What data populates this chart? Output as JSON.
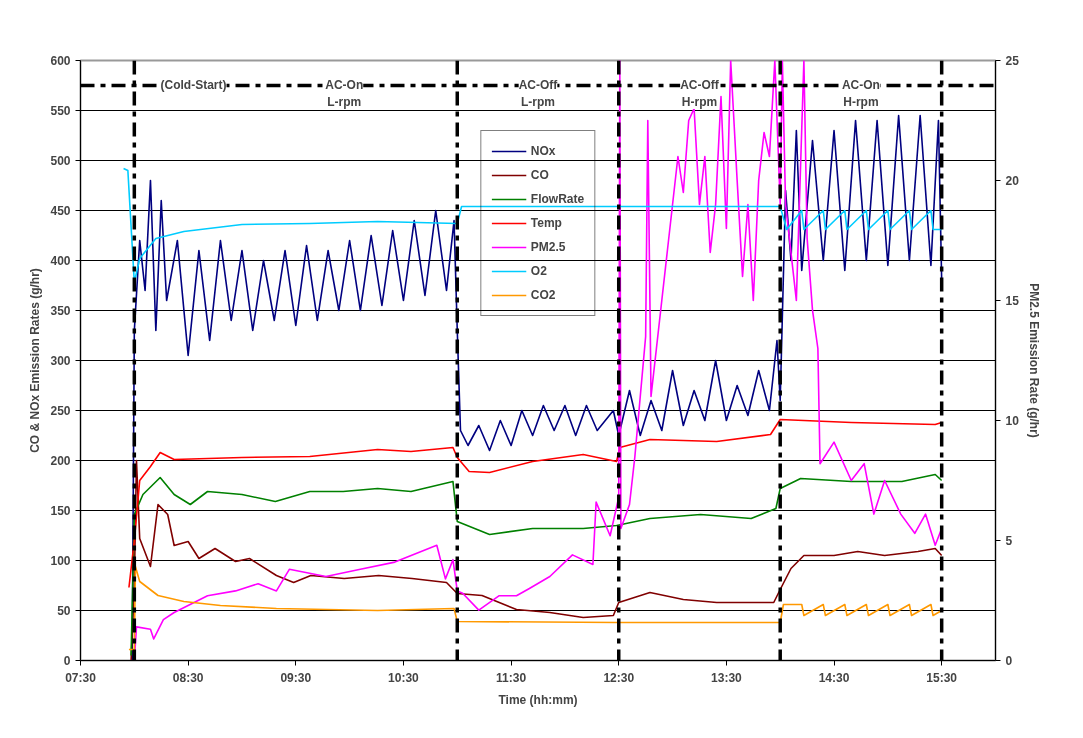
{
  "chart_data": {
    "type": "line",
    "xlabel": "Time (hh:mm)",
    "ylabel": "CO & NOx Emission Rates (g/hr)",
    "y2label": "PM2.5 Emission Rate (g/hr)",
    "xlim": [
      7.5,
      16.0
    ],
    "xticks": [
      {
        "value": 7.5,
        "label": "07:30"
      },
      {
        "value": 8.5,
        "label": "08:30"
      },
      {
        "value": 9.5,
        "label": "09:30"
      },
      {
        "value": 10.5,
        "label": "10:30"
      },
      {
        "value": 11.5,
        "label": "11:30"
      },
      {
        "value": 12.5,
        "label": "12:30"
      },
      {
        "value": 13.5,
        "label": "13:30"
      },
      {
        "value": 14.5,
        "label": "14:30"
      },
      {
        "value": 15.5,
        "label": "15:30"
      }
    ],
    "ylim": [
      0,
      600
    ],
    "yticks": [
      0,
      50,
      100,
      150,
      200,
      250,
      300,
      350,
      400,
      450,
      500,
      550,
      600
    ],
    "y2lim": [
      0,
      25
    ],
    "y2ticks": [
      0,
      5,
      10,
      15,
      20,
      25
    ],
    "grid": "y",
    "legend": "top center",
    "line_style": "solid",
    "marker": "none",
    "series": [
      {
        "name": "NOx",
        "color": "#000080",
        "x": [
          7.98,
          8.0,
          8.05,
          8.1,
          8.15,
          8.2,
          8.25,
          8.3,
          8.4,
          8.5,
          8.6,
          8.7,
          8.8,
          8.9,
          9.0,
          9.1,
          9.2,
          9.3,
          9.4,
          9.5,
          9.6,
          9.7,
          9.8,
          9.9,
          10.0,
          10.1,
          10.2,
          10.3,
          10.4,
          10.5,
          10.6,
          10.7,
          10.8,
          10.9,
          10.97,
          11.0,
          11.03,
          11.1,
          11.2,
          11.3,
          11.4,
          11.5,
          11.6,
          11.7,
          11.8,
          11.9,
          12.0,
          12.1,
          12.2,
          12.3,
          12.45,
          12.5,
          12.6,
          12.7,
          12.8,
          12.9,
          13.0,
          13.1,
          13.2,
          13.3,
          13.4,
          13.5,
          13.6,
          13.7,
          13.8,
          13.9,
          13.97,
          14.0,
          14.05,
          14.1,
          14.15,
          14.2,
          14.3,
          14.4,
          14.5,
          14.6,
          14.7,
          14.8,
          14.9,
          15.0,
          15.1,
          15.2,
          15.3,
          15.4,
          15.47,
          15.5
        ],
        "values": [
          0,
          330,
          420,
          370,
          480,
          330,
          460,
          360,
          420,
          305,
          410,
          320,
          420,
          340,
          410,
          330,
          400,
          340,
          410,
          335,
          415,
          340,
          410,
          350,
          420,
          350,
          425,
          355,
          430,
          360,
          440,
          365,
          450,
          370,
          440,
          330,
          230,
          215,
          235,
          210,
          240,
          215,
          250,
          225,
          255,
          230,
          255,
          225,
          255,
          230,
          250,
          225,
          270,
          225,
          260,
          230,
          290,
          235,
          270,
          240,
          300,
          240,
          275,
          245,
          290,
          250,
          320,
          260,
          470,
          400,
          530,
          390,
          520,
          400,
          530,
          390,
          540,
          400,
          540,
          395,
          545,
          400,
          545,
          395,
          540,
          380
        ]
      },
      {
        "name": "CO",
        "color": "#800000",
        "x": [
          7.97,
          8.0,
          8.02,
          8.05,
          8.15,
          8.22,
          8.31,
          8.37,
          8.5,
          8.6,
          8.75,
          8.94,
          9.07,
          9.32,
          9.48,
          9.64,
          9.95,
          10.27,
          10.58,
          10.9,
          11.0,
          11.23,
          11.55,
          11.86,
          12.17,
          12.45,
          12.5,
          12.79,
          13.1,
          13.41,
          13.73,
          13.94,
          14.0,
          14.1,
          14.22,
          14.5,
          14.72,
          14.97,
          15.28,
          15.44,
          15.5
        ],
        "values": [
          0,
          75,
          200,
          122,
          94,
          156,
          146,
          115,
          119,
          102,
          112,
          99,
          102,
          85,
          78,
          85,
          82,
          85,
          82,
          78,
          67,
          65,
          51,
          48,
          43,
          45,
          58,
          68,
          61,
          58,
          58,
          58,
          71,
          92,
          105,
          105,
          109,
          105,
          109,
          112,
          105
        ]
      },
      {
        "name": "FlowRate",
        "color": "#008000",
        "x": [
          7.97,
          8.0,
          8.08,
          8.24,
          8.37,
          8.52,
          8.68,
          9.0,
          9.31,
          9.63,
          9.94,
          10.26,
          10.57,
          10.96,
          11.0,
          11.3,
          11.7,
          12.17,
          12.48,
          12.79,
          13.26,
          13.73,
          13.96,
          14.0,
          14.19,
          14.66,
          15.13,
          15.44,
          15.5
        ],
        "values": [
          5,
          146,
          166,
          183,
          166,
          156,
          169,
          166,
          159,
          169,
          169,
          172,
          169,
          179,
          139,
          126,
          132,
          132,
          135,
          142,
          146,
          142,
          152,
          172,
          182,
          179,
          179,
          186,
          180
        ]
      },
      {
        "name": "Temp",
        "color": "#ff0000",
        "x": [
          7.95,
          8.0,
          8.05,
          8.15,
          8.24,
          8.37,
          9.0,
          9.63,
          10.26,
          10.57,
          10.96,
          11.0,
          11.11,
          11.3,
          11.7,
          12.17,
          12.48,
          12.51,
          12.79,
          13.41,
          13.91,
          14.0,
          14.66,
          15.44,
          15.5
        ],
        "values": [
          73,
          120,
          180,
          194,
          208,
          201,
          203,
          204,
          211,
          209,
          213,
          203,
          189,
          188,
          199,
          206,
          199,
          213,
          221,
          219,
          226,
          241,
          238,
          236,
          238
        ]
      },
      {
        "name": "PM2.5",
        "color": "#ff00ff",
        "axis": "y2",
        "x": [
          8.0,
          8.02,
          8.15,
          8.18,
          8.27,
          8.37,
          8.68,
          8.94,
          9.15,
          9.32,
          9.44,
          9.78,
          10.1,
          10.42,
          10.81,
          10.89,
          10.96,
          11.0,
          11.05,
          11.2,
          11.39,
          11.55,
          11.67,
          11.86,
          12.07,
          12.26,
          12.29,
          12.42,
          12.5,
          12.51,
          12.52,
          12.6,
          12.65,
          12.7,
          12.75,
          12.77,
          12.8,
          12.85,
          12.9,
          12.95,
          13.0,
          13.05,
          13.1,
          13.15,
          13.2,
          13.25,
          13.3,
          13.35,
          13.4,
          13.45,
          13.5,
          13.54,
          13.6,
          13.65,
          13.7,
          13.75,
          13.8,
          13.85,
          13.9,
          13.95,
          14.0,
          14.02,
          14.05,
          14.15,
          14.22,
          14.25,
          14.3,
          14.35,
          14.37,
          14.5,
          14.66,
          14.78,
          14.87,
          14.97,
          15.12,
          15.25,
          15.35,
          15.44,
          15.5
        ],
        "values": [
          0,
          1.4,
          1.3,
          0.9,
          1.7,
          2.0,
          2.7,
          2.9,
          3.2,
          2.9,
          3.8,
          3.5,
          3.8,
          4.1,
          4.8,
          3.4,
          4.2,
          2.9,
          2.8,
          2.1,
          2.7,
          2.7,
          3.0,
          3.5,
          4.4,
          4.0,
          6.6,
          5.2,
          6.8,
          25,
          5.5,
          6.5,
          8.5,
          11,
          13.5,
          22.5,
          11,
          13,
          15,
          17,
          19,
          21,
          19.5,
          22.5,
          23,
          19,
          21,
          17,
          19,
          23.5,
          18,
          25,
          20,
          16,
          19,
          15,
          20,
          22,
          21,
          25,
          19,
          25,
          19,
          15,
          25,
          17.6,
          14.6,
          13,
          8.2,
          9.1,
          7.5,
          8.2,
          6.1,
          7.5,
          6.1,
          5.3,
          6.1,
          4.8,
          5.5
        ]
      },
      {
        "name": "O2",
        "color": "#00ccff",
        "x": [
          7.9,
          7.94,
          8.0,
          8.05,
          8.2,
          8.46,
          9.0,
          9.63,
          10.26,
          11.0,
          11.04,
          12.49,
          14.0,
          14.06,
          14.2,
          14.22,
          14.4,
          14.42,
          14.6,
          14.62,
          14.8,
          14.82,
          15.0,
          15.02,
          15.2,
          15.22,
          15.4,
          15.42,
          15.5
        ],
        "values": [
          492,
          490,
          378,
          402,
          422,
          429,
          436,
          437,
          439,
          437,
          454,
          454,
          454,
          431,
          450,
          431,
          450,
          431,
          450,
          431,
          450,
          431,
          450,
          431,
          450,
          431,
          450,
          431,
          431
        ]
      },
      {
        "name": "CO2",
        "color": "#ff9900",
        "x": [
          7.95,
          8.0,
          8.01,
          8.05,
          8.22,
          8.46,
          8.8,
          9.32,
          10.26,
          10.97,
          11.0,
          12.48,
          14.0,
          14.03,
          14.2,
          14.22,
          14.4,
          14.42,
          14.6,
          14.62,
          14.8,
          14.82,
          15.0,
          15.02,
          15.2,
          15.22,
          15.4,
          15.42,
          15.5
        ],
        "values": [
          11,
          11,
          94,
          79,
          65,
          59,
          55,
          52,
          50,
          52,
          39,
          38,
          38,
          56,
          56,
          45,
          56,
          45,
          56,
          45,
          56,
          45,
          56,
          45,
          56,
          45,
          56,
          45,
          50
        ]
      }
    ],
    "ref_lines": [
      {
        "axis": "x",
        "value": 8.0,
        "line_style": "dashed",
        "color": "#000000"
      },
      {
        "axis": "x",
        "value": 11.0,
        "line_style": "dashed",
        "color": "#000000"
      },
      {
        "axis": "x",
        "value": 12.5,
        "line_style": "dashed",
        "color": "#000000"
      },
      {
        "axis": "x",
        "value": 14.0,
        "line_style": "dashed",
        "color": "#000000"
      },
      {
        "axis": "x",
        "value": 15.5,
        "line_style": "dashed",
        "color": "#000000"
      },
      {
        "axis": "y",
        "value": 575,
        "line_style": "dashed",
        "color": "#000000"
      }
    ],
    "annotations": [
      {
        "text": "(Cold-Start)",
        "x": 8.55,
        "y": 575
      },
      {
        "text": "AC-On\nL-rpm",
        "x": 9.95,
        "y": 575
      },
      {
        "text": "AC-Off\nL-rpm",
        "x": 11.75,
        "y": 575
      },
      {
        "text": "AC-Off\nH-rpm",
        "x": 13.25,
        "y": 575
      },
      {
        "text": "AC-On\nH-rpm",
        "x": 14.75,
        "y": 575
      }
    ]
  }
}
